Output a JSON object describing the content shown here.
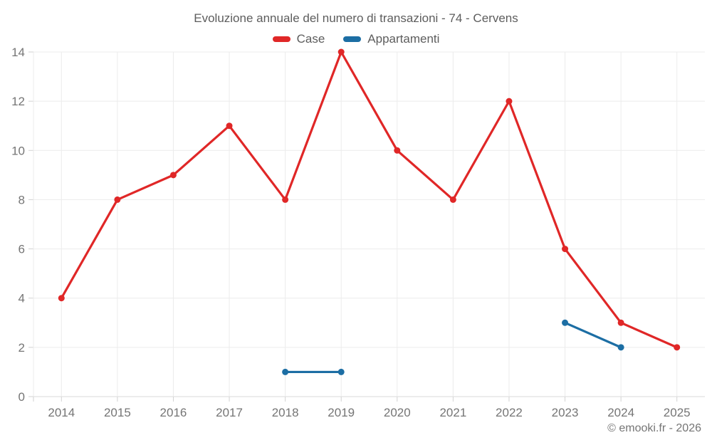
{
  "footer": {
    "text": "© emooki.fr - 2026"
  },
  "style": {
    "grid_color": "#ececec",
    "axis_line_color": "#d9d9d9",
    "tick_color": "#d2d2d2",
    "axis_label_color": "#757575",
    "title_color": "#5d5d5d"
  },
  "chart_data": {
    "type": "line",
    "title": "Evoluzione annuale del numero di transazioni - 74 - Cervens",
    "categories": [
      "2014",
      "2015",
      "2016",
      "2017",
      "2018",
      "2019",
      "2020",
      "2021",
      "2022",
      "2023",
      "2024",
      "2025"
    ],
    "series": [
      {
        "name": "Case",
        "color": "#e02727",
        "values": [
          4,
          8,
          9,
          11,
          8,
          14,
          10,
          8,
          12,
          6,
          3,
          2
        ]
      },
      {
        "name": "Appartamenti",
        "color": "#1c6ea4",
        "values": [
          null,
          null,
          null,
          null,
          1,
          1,
          null,
          null,
          null,
          3,
          2,
          null
        ]
      }
    ],
    "xlabel": "",
    "ylabel": "",
    "ylim": [
      0,
      14
    ],
    "ytick_step": 2,
    "grid": true,
    "legend_position": "top",
    "marker": "circle"
  }
}
